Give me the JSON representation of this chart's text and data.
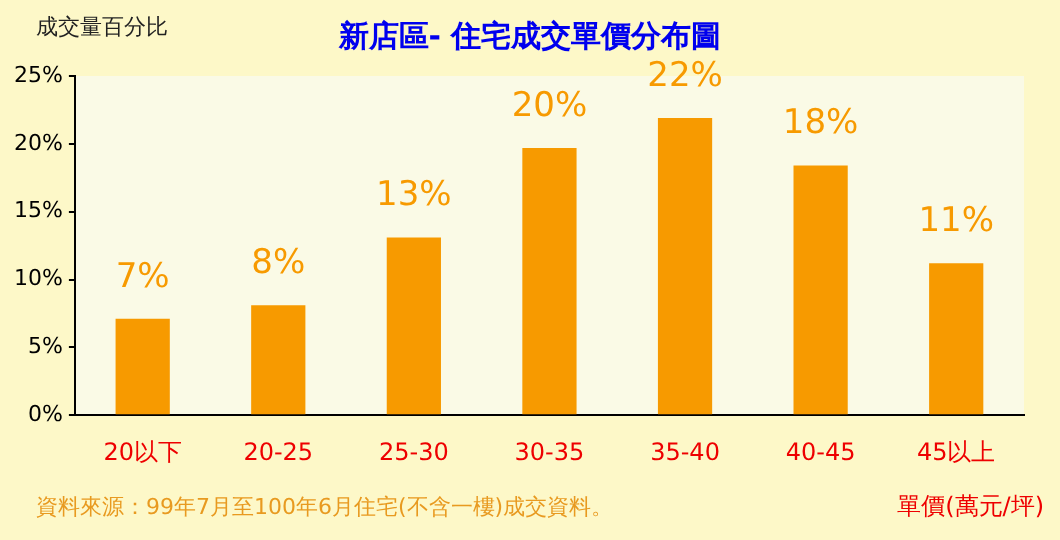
{
  "chart_data": {
    "type": "bar",
    "title": "新店區- 住宅成交單價分布圖",
    "ylabel": "成交量百分比",
    "xlabel": "單價(萬元/坪)",
    "categories": [
      "20以下",
      "20-25",
      "25-30",
      "30-35",
      "35-40",
      "40-45",
      "45以上"
    ],
    "values": [
      7.1,
      8.1,
      13.1,
      19.7,
      21.9,
      18.4,
      11.2
    ],
    "color": "#f79a00",
    "value_labels": [
      "7%",
      "8%",
      "13%",
      "20%",
      "22%",
      "18%",
      "11%"
    ],
    "ylim": [
      0,
      25
    ],
    "yticks": [
      {
        "value": 0,
        "label": "0%"
      },
      {
        "value": 5,
        "label": "5%"
      },
      {
        "value": 10,
        "label": "10%"
      },
      {
        "value": 15,
        "label": "15%"
      },
      {
        "value": 20,
        "label": "20%"
      },
      {
        "value": 25,
        "label": "25%"
      }
    ],
    "grid": false,
    "legend": false,
    "annotations": [
      "資料來源：99年7月至100年6月住宅(不含一樓)成交資料。"
    ]
  }
}
